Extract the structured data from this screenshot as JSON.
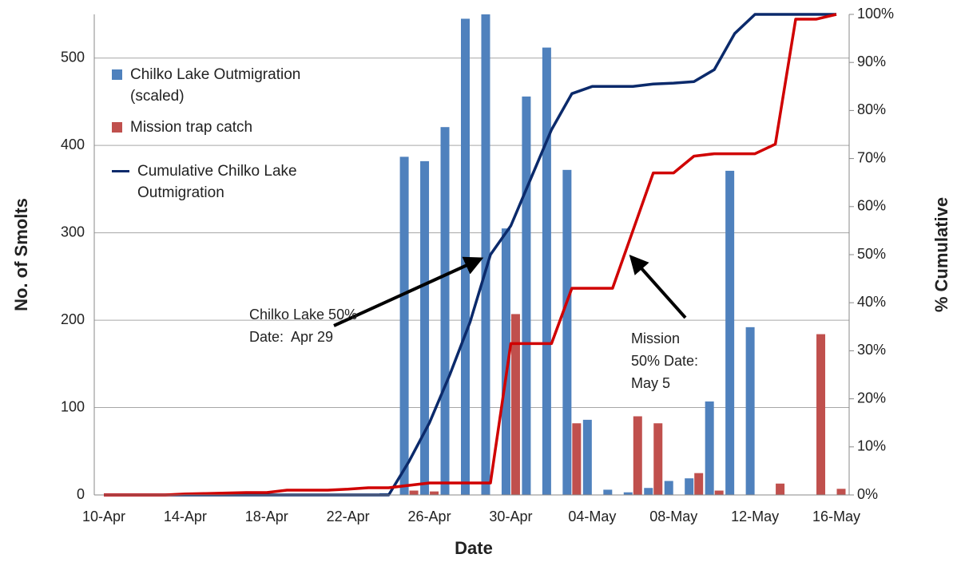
{
  "chart_data": {
    "type": "combo",
    "x_label": "Date",
    "y_label": "No. of Smolts",
    "y2_label": "% Cumulative",
    "categories": [
      "10-Apr",
      null,
      null,
      null,
      "14-Apr",
      null,
      null,
      null,
      "18-Apr",
      null,
      null,
      null,
      "22-Apr",
      null,
      null,
      null,
      "26-Apr",
      null,
      null,
      null,
      "30-Apr",
      null,
      null,
      null,
      "04-May",
      null,
      null,
      null,
      "08-May",
      null,
      null,
      null,
      "12-May",
      null,
      null,
      null,
      "16-May"
    ],
    "ylim": [
      0,
      550
    ],
    "yticks": [
      0,
      100,
      200,
      300,
      400,
      500
    ],
    "y2lim": [
      0,
      100
    ],
    "y2ticks": [
      {
        "value": 0,
        "label": "0%"
      },
      {
        "value": 10,
        "label": "10%"
      },
      {
        "value": 20,
        "label": "20%"
      },
      {
        "value": 30,
        "label": "30%"
      },
      {
        "value": 40,
        "label": "40%"
      },
      {
        "value": 50,
        "label": "50%"
      },
      {
        "value": 60,
        "label": "60%"
      },
      {
        "value": 70,
        "label": "70%"
      },
      {
        "value": 80,
        "label": "80%"
      },
      {
        "value": 90,
        "label": "90%"
      },
      {
        "value": 100,
        "label": "100%"
      }
    ],
    "grid": true,
    "series": [
      {
        "name": "Chilko Lake Outmigration (scaled)",
        "type": "bar",
        "color": "#4f81bd",
        "values": [
          0,
          0,
          0,
          0,
          0,
          0,
          0,
          0,
          0,
          0,
          0,
          0,
          0,
          0,
          2,
          387,
          382,
          421,
          545,
          550,
          305,
          456,
          512,
          372,
          86,
          6,
          3,
          8,
          16,
          19,
          107,
          371,
          192,
          0,
          0,
          0,
          0
        ]
      },
      {
        "name": "Mission trap catch",
        "type": "bar",
        "color": "#c0504d",
        "values": [
          0,
          0,
          0,
          0,
          0,
          0,
          0,
          0,
          0,
          0,
          0,
          0,
          0,
          0,
          0,
          5,
          4,
          0,
          0,
          0,
          207,
          0,
          0,
          82,
          0,
          0,
          90,
          82,
          0,
          25,
          5,
          0,
          0,
          13,
          0,
          184,
          7
        ]
      },
      {
        "name": "Cumulative Chilko Lake Outmigration",
        "type": "line",
        "axis": "y2",
        "color": "#0b2a6b",
        "values": [
          0,
          0,
          0,
          0,
          0,
          0,
          0,
          0,
          0,
          0,
          0,
          0,
          0,
          0,
          0,
          7,
          15,
          25,
          36,
          50,
          56,
          66,
          76,
          83.5,
          85,
          85,
          85,
          85.5,
          85.7,
          86,
          88.5,
          96,
          100,
          100,
          100,
          100,
          100
        ]
      },
      {
        "type": "line",
        "axis": "y2",
        "color": "#d00000",
        "values": [
          0,
          0,
          0,
          0,
          0.2,
          0.3,
          0.4,
          0.5,
          0.5,
          1,
          1,
          1,
          1.2,
          1.5,
          1.5,
          2,
          2.5,
          2.5,
          2.5,
          2.5,
          31.5,
          31.5,
          31.5,
          43,
          43,
          43,
          55,
          67,
          67,
          70.5,
          71,
          71,
          71,
          73,
          99,
          99,
          100
        ]
      }
    ],
    "annotations": [
      {
        "lines": [
          "Chilko Lake 50%",
          "Date:  Apr 29"
        ]
      },
      {
        "lines": [
          "Mission",
          "50% Date:",
          "May 5"
        ]
      }
    ]
  }
}
